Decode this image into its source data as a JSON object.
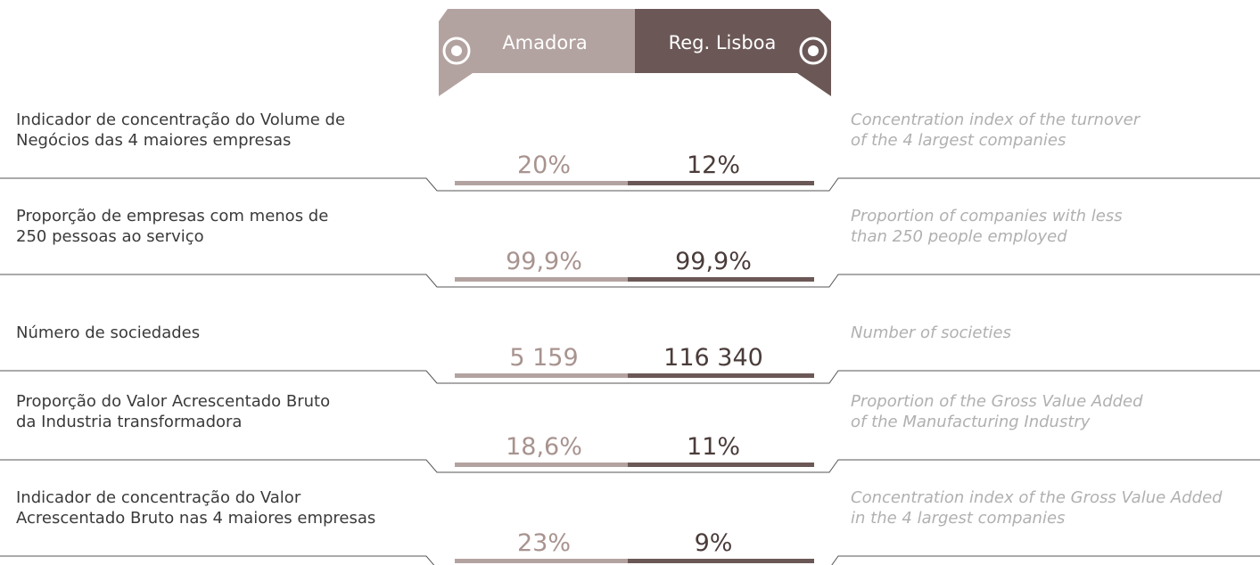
{
  "header": {
    "tabs": [
      "Amadora",
      "Reg. Lisboa"
    ]
  },
  "rows": [
    {
      "pt": [
        "Indicador de concentração do Volume de",
        "Negócios das 4 maiores empresas"
      ],
      "amadora": "20%",
      "lisboa": "12%",
      "en": [
        "Concentration index of the turnover",
        "of the 4 largest companies"
      ]
    },
    {
      "pt": [
        "Proporção de empresas com menos de",
        "250 pessoas ao serviço"
      ],
      "amadora": "99,9%",
      "lisboa": "99,9%",
      "en": [
        "Proportion of companies with less",
        "than 250 people employed"
      ]
    },
    {
      "pt": [
        "Número de sociedades"
      ],
      "amadora": "5 159",
      "lisboa": "116 340",
      "en": [
        "Number of societies"
      ]
    },
    {
      "pt": [
        "Proporção do Valor Acrescentado Bruto",
        "da Industria transformadora"
      ],
      "amadora": "18,6%",
      "lisboa": "11%",
      "en": [
        "Proportion of the Gross Value Added",
        "of the Manufacturing Industry"
      ]
    },
    {
      "pt": [
        "Indicador de concentração do Valor",
        "Acrescentado Bruto nas 4 maiores empresas"
      ],
      "amadora": "23%",
      "lisboa": "9%",
      "en": [
        "Concentration index of the Gross Value Added",
        "in the 4 largest companies"
      ]
    }
  ]
}
